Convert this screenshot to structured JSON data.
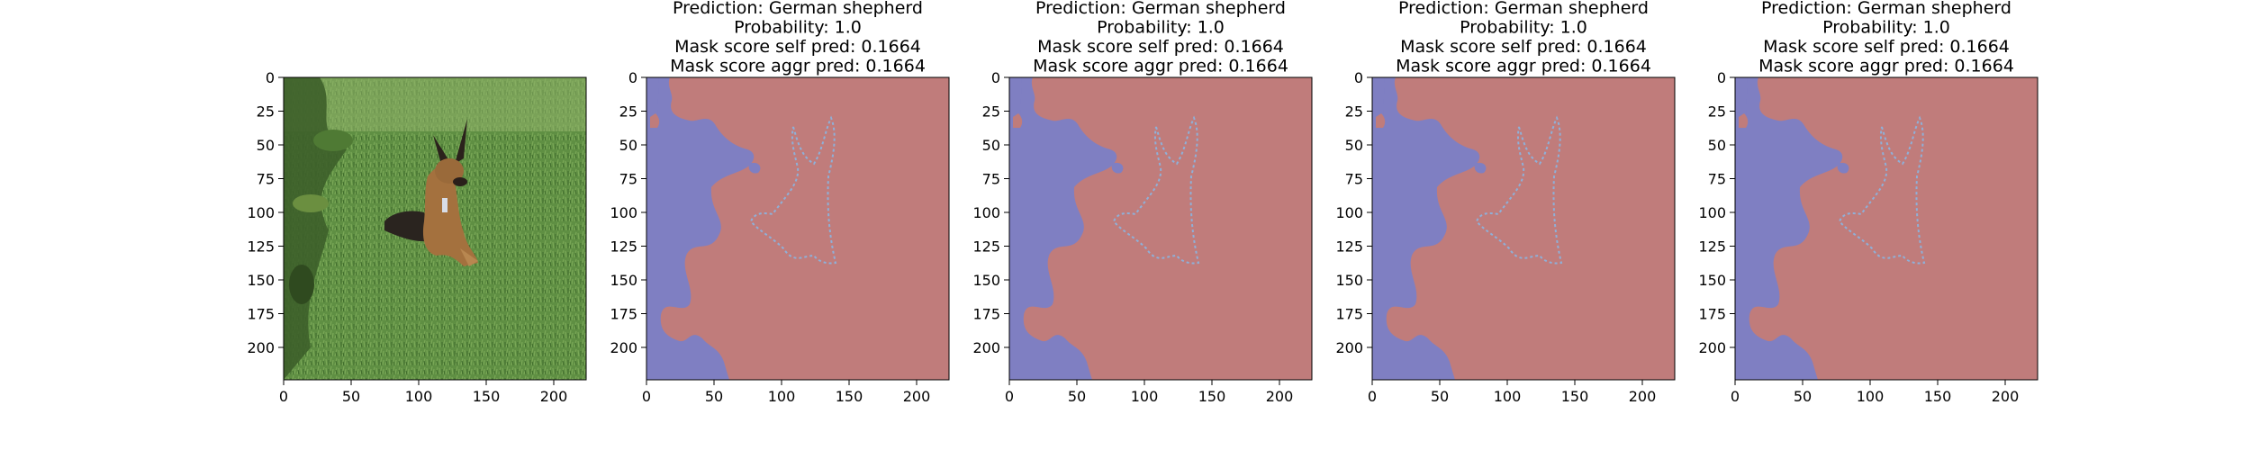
{
  "chart_data": [
    {
      "type": "image",
      "content": "photo: German shepherd lying on grass, foliage on left edge",
      "title_lines": [],
      "xlim": [
        0,
        224
      ],
      "ylim": [
        224,
        0
      ],
      "xticks": [
        0,
        50,
        100,
        150,
        200
      ],
      "yticks": [
        0,
        25,
        50,
        75,
        100,
        125,
        150,
        175,
        200
      ]
    },
    {
      "type": "heatmap",
      "content": "binary segmentation mask overlay",
      "colors": {
        "background_region": "#7f7fc2",
        "object_region": "#c07c7b"
      },
      "title_lines": [
        "Prediction: German shepherd",
        "Probability: 1.0",
        "Mask score self pred: 0.1664",
        "Mask score aggr pred: 0.1664"
      ],
      "xlim": [
        0,
        224
      ],
      "ylim": [
        224,
        0
      ],
      "xticks": [
        0,
        50,
        100,
        150,
        200
      ],
      "yticks": [
        0,
        25,
        50,
        75,
        100,
        125,
        150,
        175,
        200
      ]
    },
    {
      "type": "heatmap",
      "content": "binary segmentation mask overlay",
      "colors": {
        "background_region": "#7f7fc2",
        "object_region": "#c07c7b"
      },
      "title_lines": [
        "Prediction: German shepherd",
        "Probability: 1.0",
        "Mask score self pred: 0.1664",
        "Mask score aggr pred: 0.1664"
      ],
      "xlim": [
        0,
        224
      ],
      "ylim": [
        224,
        0
      ],
      "xticks": [
        0,
        50,
        100,
        150,
        200
      ],
      "yticks": [
        0,
        25,
        50,
        75,
        100,
        125,
        150,
        175,
        200
      ]
    },
    {
      "type": "heatmap",
      "content": "binary segmentation mask overlay",
      "colors": {
        "background_region": "#7f7fc2",
        "object_region": "#c07c7b"
      },
      "title_lines": [
        "Prediction: German shepherd",
        "Probability: 1.0",
        "Mask score self pred: 0.1664",
        "Mask score aggr pred: 0.1664"
      ],
      "xlim": [
        0,
        224
      ],
      "ylim": [
        224,
        0
      ],
      "xticks": [
        0,
        50,
        100,
        150,
        200
      ],
      "yticks": [
        0,
        25,
        50,
        75,
        100,
        125,
        150,
        175,
        200
      ]
    },
    {
      "type": "heatmap",
      "content": "binary segmentation mask overlay",
      "colors": {
        "background_region": "#7f7fc2",
        "object_region": "#c07c7b"
      },
      "title_lines": [
        "Prediction: German shepherd",
        "Probability: 1.0",
        "Mask score self pred: 0.1664",
        "Mask score aggr pred: 0.1664"
      ],
      "xlim": [
        0,
        224
      ],
      "ylim": [
        224,
        0
      ],
      "xticks": [
        0,
        50,
        100,
        150,
        200
      ],
      "yticks": [
        0,
        25,
        50,
        75,
        100,
        125,
        150,
        175,
        200
      ]
    }
  ]
}
